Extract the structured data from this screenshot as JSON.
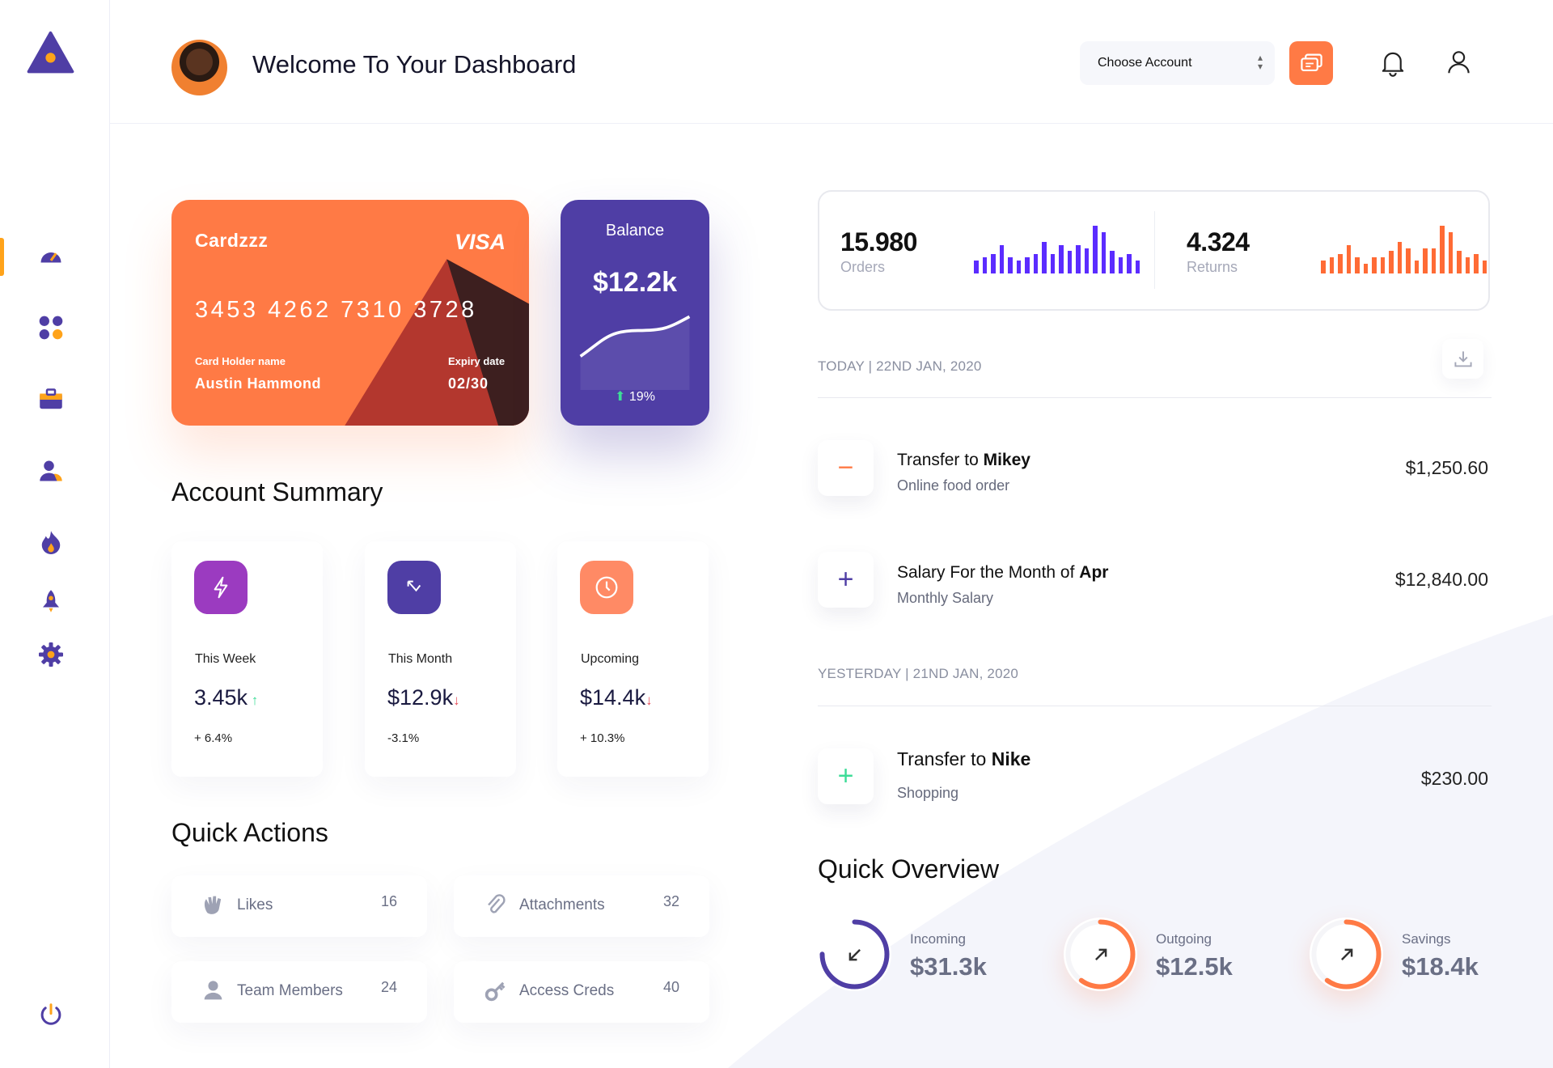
{
  "header": {
    "title": "Welcome To Your Dashboard",
    "account_select": "Choose Account"
  },
  "card": {
    "brand": "Cardzzz",
    "network": "VISA",
    "number": "3453 4262 7310 3728",
    "holder_label": "Card Holder name",
    "holder": "Austin Hammond",
    "expiry_label": "Expiry date",
    "expiry": "02/30"
  },
  "balance": {
    "label": "Balance",
    "value": "$12.2k",
    "change": "19%"
  },
  "summary": {
    "title": "Account Summary",
    "items": [
      {
        "label": "This Week",
        "value": "3.45k",
        "change": "+ 6.4%",
        "trend": "up",
        "color": "#9b3bc0",
        "icon": "lightning-icon"
      },
      {
        "label": "This Month",
        "value": "$12.9k",
        "change": "-3.1%",
        "trend": "down",
        "color": "#4f3ea5",
        "icon": "arrow-up-left-icon"
      },
      {
        "label": "Upcoming",
        "value": "$14.4k",
        "change": "+ 10.3%",
        "trend": "down",
        "color": "#ff8a65",
        "icon": "clock-icon"
      }
    ]
  },
  "quick_actions": {
    "title": "Quick Actions",
    "items": [
      {
        "label": "Likes",
        "count": "16",
        "icon": "hand-icon"
      },
      {
        "label": "Attachments",
        "count": "32",
        "icon": "paperclip-icon"
      },
      {
        "label": "Team Members",
        "count": "24",
        "icon": "user-icon"
      },
      {
        "label": "Access Creds",
        "count": "40",
        "icon": "key-icon"
      }
    ]
  },
  "stats": {
    "orders": {
      "value": "15.980",
      "label": "Orders",
      "color": "#5b2cff",
      "bars": [
        4,
        5,
        6,
        9,
        5,
        4,
        5,
        6,
        10,
        6,
        9,
        7,
        9,
        8,
        15,
        13,
        7,
        5,
        6,
        4
      ]
    },
    "returns": {
      "value": "4.324",
      "label": "Returns",
      "color": "#ff6b35",
      "bars": [
        4,
        5,
        6,
        9,
        5,
        3,
        5,
        5,
        7,
        10,
        8,
        4,
        8,
        8,
        15,
        13,
        7,
        5,
        6,
        4
      ]
    }
  },
  "transactions": {
    "today": "TODAY | 22ND JAN, 2020",
    "yesterday": "YESTERDAY | 21ND JAN, 2020",
    "items": [
      {
        "title": "Transfer to ",
        "bold": "Mikey",
        "subtitle": "Online food order",
        "amount": "$1,250.60",
        "sign": "−"
      },
      {
        "title": "Salary For the Month of ",
        "bold": "Apr",
        "subtitle": "Monthly Salary",
        "amount": "$12,840.00",
        "sign": "+"
      },
      {
        "title": "Transfer to ",
        "bold": "Nike",
        "subtitle": "Shopping",
        "amount": "$230.00",
        "sign": "+"
      }
    ]
  },
  "overview": {
    "title": "Quick Overview",
    "items": [
      {
        "label": "Incoming",
        "value": "$31.3k",
        "progress": 0.75,
        "color": "#4f3ea5"
      },
      {
        "label": "Outgoing",
        "value": "$12.5k",
        "progress": 0.6,
        "color": "#ff7a45"
      },
      {
        "label": "Savings",
        "value": "$18.4k",
        "progress": 0.6,
        "color": "#ff7a45"
      }
    ]
  }
}
